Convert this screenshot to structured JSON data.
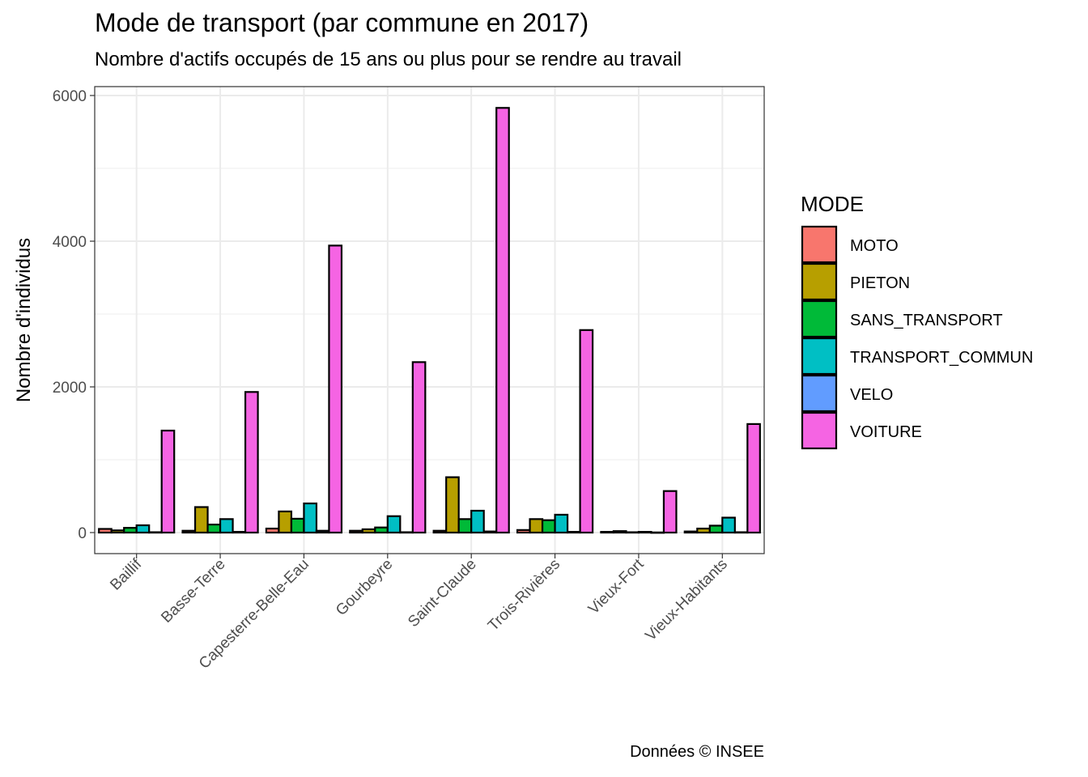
{
  "chart_data": {
    "type": "bar",
    "title": "Mode de transport (par commune en 2017)",
    "subtitle": "Nombre d'actifs occupés de 15 ans ou plus pour se rendre au travail",
    "xlabel": "",
    "ylabel": "Nombre d'individus",
    "ylim": [
      -280,
      6100
    ],
    "yticks": [
      0,
      2000,
      4000,
      6000
    ],
    "grid": true,
    "legend_position": "right",
    "legend_title": "MODE",
    "categories": [
      "Baillif",
      "Basse-Terre",
      "Capesterre-Belle-Eau",
      "Gourbeyre",
      "Saint-Claude",
      "Trois-Rivières",
      "Vieux-Fort",
      "Vieux-Habitants"
    ],
    "series": [
      {
        "name": "MOTO",
        "color": "#F8766D",
        "values": [
          50,
          25,
          55,
          25,
          25,
          35,
          10,
          15
        ]
      },
      {
        "name": "PIETON",
        "color": "#B79F00",
        "values": [
          30,
          350,
          290,
          45,
          760,
          185,
          20,
          55
        ]
      },
      {
        "name": "SANS_TRANSPORT",
        "color": "#00BA38",
        "values": [
          65,
          110,
          190,
          70,
          185,
          170,
          5,
          95
        ]
      },
      {
        "name": "TRANSPORT_COMMUN",
        "color": "#00BFC4",
        "values": [
          100,
          185,
          400,
          225,
          300,
          245,
          10,
          205
        ]
      },
      {
        "name": "VELO",
        "color": "#619CFF",
        "values": [
          5,
          10,
          25,
          5,
          15,
          10,
          2,
          5
        ]
      },
      {
        "name": "VOITURE",
        "color": "#F564E3",
        "values": [
          1400,
          1930,
          3940,
          2340,
          5830,
          2780,
          570,
          1490
        ]
      }
    ]
  },
  "caption": "Données © INSEE"
}
